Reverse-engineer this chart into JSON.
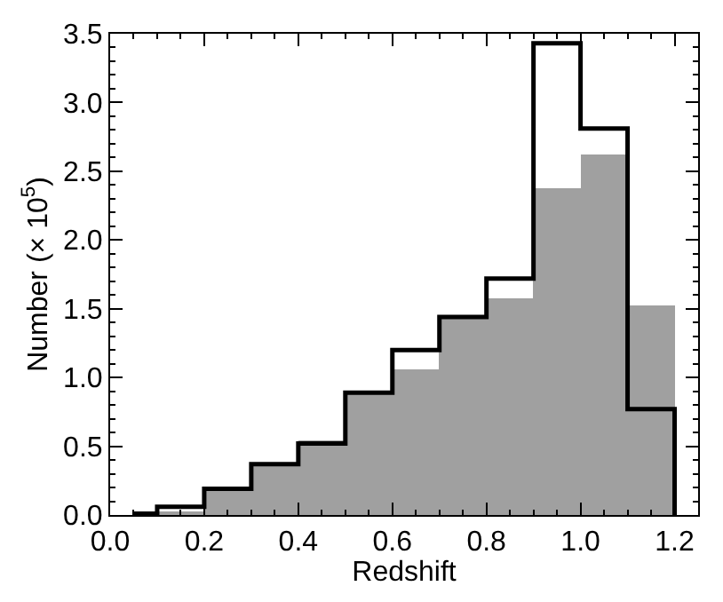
{
  "chart_data": {
    "type": "histogram",
    "xlabel": "Redshift",
    "ylabel": "Number (× 10$^{5}$)",
    "bins": [
      0.05,
      0.1,
      0.2,
      0.3,
      0.4,
      0.5,
      0.6,
      0.7,
      0.8,
      0.9,
      1.0,
      1.1,
      1.2
    ],
    "series": [
      {
        "color": "#a0a0a0",
        "values": [
          0.01,
          0.03,
          0.19,
          0.37,
          0.54,
          0.89,
          1.06,
          1.44,
          1.57,
          2.38,
          2.62,
          1.53
        ]
      },
      {
        "type": "step",
        "color": "#000000",
        "x": [
          0.05,
          0.1,
          0.2,
          0.3,
          0.4,
          0.5,
          0.6,
          0.7,
          0.8,
          0.9,
          1.0,
          1.1,
          1.2
        ],
        "values": [
          0.01,
          0.06,
          0.19,
          0.37,
          0.52,
          0.89,
          1.2,
          1.44,
          1.72,
          3.43,
          2.81,
          0.77,
          0
        ]
      }
    ],
    "xlim": [
      0,
      1.25
    ],
    "xticks": [
      {
        "value": 0,
        "label": "0.0"
      },
      0.2,
      0.4,
      0.6,
      0.8,
      {
        "value": 1,
        "label": "1.0"
      },
      1.2
    ],
    "ylim": [
      0,
      3.5
    ],
    "yticks": [
      {
        "value": 0,
        "label": "0.0"
      },
      0.5,
      {
        "value": 1,
        "label": "1.0"
      },
      1.5,
      {
        "value": 2,
        "label": "2.0"
      },
      2.5,
      {
        "value": 3,
        "label": "3.0"
      },
      3.5
    ]
  }
}
